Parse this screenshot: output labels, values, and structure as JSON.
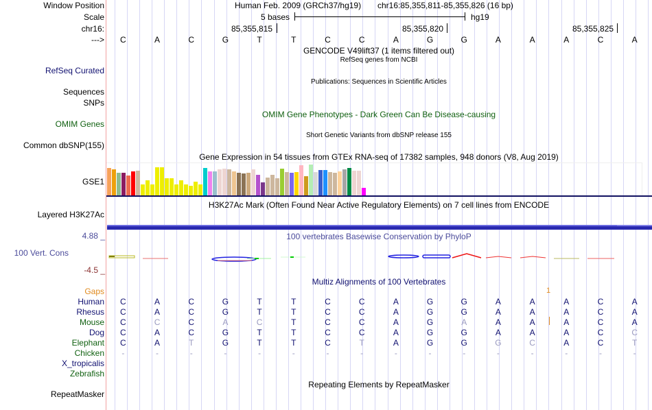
{
  "header": {
    "window_position_label": "Window Position",
    "scale_label": "Scale",
    "chrom_label": "chr16:",
    "arrow_label": "--->",
    "assembly_title": "Human Feb. 2009 (GRCh37/hg19)",
    "position": "chr16:85,355,811-85,355,826 (16 bp)",
    "scale_text": "5 bases",
    "scale_assembly": "hg19",
    "coordinate_ticks": [
      "85,355,815",
      "85,355,820",
      "85,355,825"
    ]
  },
  "sequence": [
    "C",
    "A",
    "C",
    "G",
    "T",
    "T",
    "C",
    "C",
    "A",
    "G",
    "G",
    "A",
    "A",
    "A",
    "C",
    "A"
  ],
  "tracks": {
    "gencode": {
      "title": "GENCODE V49lift37 (1 items filtered out)"
    },
    "refseq": {
      "label": "RefSeq Curated",
      "title": "RefSeq genes from NCBI"
    },
    "publications": {
      "label_line1": "Sequences",
      "label_line2": "SNPs",
      "title": "Publications: Sequences in Scientific Articles"
    },
    "omim": {
      "label": "OMIM Genes",
      "title": "OMIM Gene Phenotypes - Dark Green Can Be Disease-causing"
    },
    "dbsnp": {
      "label": "Common dbSNP(155)",
      "title": "Short Genetic Variants from dbSNP release 155"
    },
    "gtex": {
      "label": "GSE1",
      "title": "Gene Expression in 54 tissues from GTEx RNA-seq of 17382 samples, 948 donors (V8, Aug 2019)"
    },
    "h3k27ac": {
      "label": "Layered H3K27Ac",
      "title": "H3K27Ac Mark (Often Found Near Active Regulatory Elements) on 7 cell lines from ENCODE"
    },
    "phylop": {
      "label": "100 Vert. Cons",
      "title": "100 vertebrates Basewise Conservation by PhyloP",
      "y_max": "4.88 _",
      "y_min": "-4.5 _"
    },
    "multiz": {
      "title": "Multiz Alignments of 100 Vertebrates",
      "gaps_label": "Gaps",
      "gap_count": "1",
      "species": [
        {
          "name": "Human",
          "color": "navy",
          "seq": [
            "C",
            "A",
            "C",
            "G",
            "T",
            "T",
            "C",
            "C",
            "A",
            "G",
            "G",
            "A",
            "A",
            "A",
            "C",
            "A"
          ],
          "faint": []
        },
        {
          "name": "Rhesus",
          "color": "navy",
          "seq": [
            "C",
            "A",
            "C",
            "G",
            "T",
            "T",
            "C",
            "C",
            "A",
            "G",
            "G",
            "A",
            "A",
            "A",
            "C",
            "A"
          ],
          "faint": []
        },
        {
          "name": "Mouse",
          "color": "green",
          "seq": [
            "C",
            "C",
            "C",
            "A",
            "C",
            "T",
            "C",
            "C",
            "A",
            "G",
            "A",
            "A",
            "A",
            "A",
            "C",
            "A"
          ],
          "faint": [
            1,
            3,
            4,
            10
          ]
        },
        {
          "name": "Dog",
          "color": "navy",
          "seq": [
            "C",
            "A",
            "C",
            "G",
            "T",
            "T",
            "C",
            "C",
            "A",
            "G",
            "G",
            "A",
            "A",
            "A",
            "C",
            "C"
          ],
          "faint": [
            15
          ]
        },
        {
          "name": "Elephant",
          "color": "green",
          "seq": [
            "C",
            "A",
            "T",
            "G",
            "T",
            "T",
            "C",
            "T",
            "A",
            "G",
            "G",
            "G",
            "C",
            "A",
            "C",
            "T"
          ],
          "faint": [
            2,
            7,
            11,
            12,
            15
          ]
        },
        {
          "name": "Chicken",
          "color": "green",
          "seq": [
            "-",
            "-",
            "-",
            "-",
            "-",
            "-",
            "-",
            "-",
            "-",
            "-",
            "-",
            "-",
            "-",
            "-",
            "-",
            "-"
          ],
          "faint": "all"
        },
        {
          "name": "X_tropicalis",
          "color": "navy",
          "seq": [],
          "faint": []
        },
        {
          "name": "Zebrafish",
          "color": "green",
          "seq": [],
          "faint": []
        }
      ]
    },
    "repeatmasker": {
      "label": "RepeatMasker",
      "title": "Repeating Elements by RepeatMasker"
    }
  },
  "chart_data": {
    "type": "bar",
    "title": "Gene Expression in 54 tissues from GTEx RNA-seq of 17382 samples, 948 donors (V8, Aug 2019)",
    "xlabel": "",
    "ylabel": "",
    "ylim": [
      0,
      1
    ],
    "values": [
      0.89,
      0.85,
      0.75,
      0.73,
      0.65,
      0.78,
      0.8,
      0.38,
      0.5,
      0.38,
      0.92,
      0.92,
      0.57,
      0.57,
      0.36,
      0.5,
      0.38,
      0.32,
      0.46,
      0.38,
      0.89,
      0.79,
      0.79,
      0.84,
      0.88,
      0.84,
      0.79,
      0.73,
      0.71,
      0.75,
      0.85,
      0.67,
      0.44,
      0.59,
      0.67,
      0.57,
      0.87,
      0.77,
      0.75,
      0.77,
      0.97,
      0.62,
      1.0,
      0.77,
      0.83,
      0.83,
      0.77,
      0.75,
      0.79,
      0.84,
      0.9,
      0.8,
      0.81,
      0.27
    ],
    "colors": [
      "#f7a15a",
      "#eea00c",
      "#8fbc8f",
      "#8b1c62",
      "#ee6a50",
      "#ff0000",
      "#cdb79e",
      "#eeee00",
      "#eeee00",
      "#eeee00",
      "#eeee00",
      "#eeee00",
      "#eeee00",
      "#eeee00",
      "#eeee00",
      "#eeee00",
      "#eeee00",
      "#eeee00",
      "#eeee00",
      "#eeee00",
      "#00cdcd",
      "#ee82ee",
      "#9ac0cd",
      "#eed5d2",
      "#eed5d2",
      "#cdb79e",
      "#eec591",
      "#8b7355",
      "#8b7355",
      "#cdaa7d",
      "#eed5d2",
      "#b452cd",
      "#7a378b",
      "#cdb79e",
      "#cdb79e",
      "#cdb79e",
      "#9acd32",
      "#cdb79e",
      "#7b68ee",
      "#ffd700",
      "#ffb6c1",
      "#cd9b1d",
      "#b4eeb4",
      "#d9d9d9",
      "#3a5fcd",
      "#1e90ff",
      "#cdb79e",
      "#cdb79e",
      "#ffd39b",
      "#a6a6a6",
      "#008b45",
      "#eed5d2",
      "#eed5d2",
      "#ff00ff"
    ]
  }
}
